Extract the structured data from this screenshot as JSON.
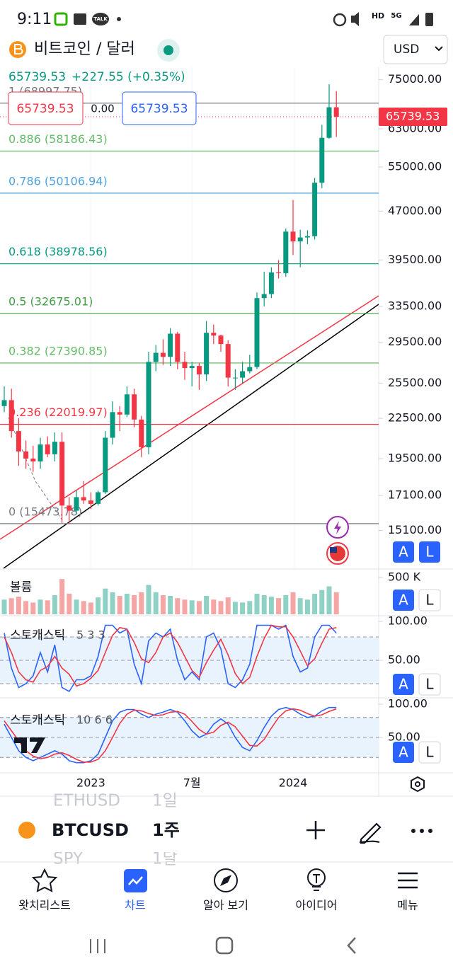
{
  "status_bar": {
    "time": "9:11",
    "talk": "TALK",
    "hd": "HD",
    "net": "5G"
  },
  "header": {
    "title": "비트코인 / 달러",
    "currency": "USD"
  },
  "quote": {
    "price": "65739.53",
    "change": "+227.55 (+0.35%)"
  },
  "order": {
    "sell": "65739.53",
    "spread": "0.00",
    "buy": "65739.53"
  },
  "chart_data": [
    {
      "type": "candlestick",
      "categories": [
        null,
        null,
        null,
        null,
        null,
        null,
        null,
        null,
        null,
        null,
        null,
        null,
        "2023",
        null,
        null,
        null,
        null,
        null,
        null,
        null,
        null,
        null,
        null,
        null,
        null,
        null,
        "7월",
        null,
        null,
        null,
        null,
        null,
        null,
        null,
        null,
        null,
        null,
        null,
        null,
        null,
        "2024",
        null,
        null,
        null,
        null,
        null,
        null
      ],
      "open": [
        23500,
        24000,
        21500,
        20000,
        19500,
        19300,
        20500,
        19800,
        20700,
        16500,
        16200,
        17000,
        16800,
        16600,
        17300,
        21000,
        23000,
        22800,
        24500,
        22400,
        20300,
        27500,
        28400,
        28000,
        30400,
        27500,
        26900,
        27100,
        26300,
        30500,
        30200,
        29300,
        26000,
        26000,
        26600,
        27000,
        34500,
        35000,
        37800,
        37700,
        43700,
        42200,
        42800,
        43000,
        52000,
        61000,
        68000
      ],
      "high": [
        25200,
        25000,
        22500,
        20800,
        20400,
        21000,
        21100,
        21400,
        21400,
        17000,
        17400,
        18000,
        17300,
        17400,
        21500,
        23900,
        23500,
        25200,
        25000,
        22700,
        28500,
        29200,
        29800,
        31000,
        30600,
        28500,
        27500,
        27400,
        31800,
        31400,
        30300,
        29700,
        26800,
        27500,
        28200,
        35200,
        37900,
        38500,
        39500,
        44200,
        48900,
        44000,
        43900,
        52900,
        63900,
        73800,
        72000
      ],
      "low": [
        23000,
        21000,
        19000,
        18800,
        18600,
        18800,
        19600,
        19300,
        15500,
        15473.78,
        16000,
        16600,
        16300,
        16500,
        17200,
        20500,
        21500,
        22600,
        21800,
        19600,
        19800,
        26600,
        27200,
        27100,
        26800,
        25800,
        25200,
        24900,
        25700,
        29300,
        28500,
        25200,
        24900,
        25500,
        26400,
        26800,
        33500,
        34500,
        37000,
        37200,
        40200,
        38500,
        41800,
        42500,
        51000,
        60800,
        61200
      ],
      "close": [
        24000,
        21500,
        20000,
        19500,
        19300,
        20500,
        19800,
        20700,
        16500,
        16200,
        17000,
        16800,
        16600,
        17300,
        21000,
        23000,
        22800,
        24500,
        22400,
        20300,
        27500,
        28400,
        28000,
        30400,
        27500,
        26900,
        27100,
        26300,
        30500,
        30200,
        29300,
        26000,
        26000,
        26600,
        27000,
        34500,
        35000,
        37800,
        37700,
        43700,
        42200,
        42800,
        43000,
        52000,
        61000,
        68000,
        65739.53
      ],
      "up_color": "#089981",
      "down_color": "#f23645",
      "log_scale": true,
      "ylim": [
        13300,
        78400
      ],
      "yticks": [
        {
          "value": 75000,
          "label": "75000.00"
        },
        {
          "value": 63000,
          "label": "63000.00"
        },
        {
          "value": 55000,
          "label": "55000.00"
        },
        {
          "value": 47000,
          "label": "47000.00"
        },
        {
          "value": 39500,
          "label": "39500.00"
        },
        {
          "value": 33500,
          "label": "33500.00"
        },
        {
          "value": 29500,
          "label": "29500.00"
        },
        {
          "value": 25500,
          "label": "25500.00"
        },
        {
          "value": 22500,
          "label": "22500.00"
        },
        {
          "value": 19500,
          "label": "19500.00"
        },
        {
          "value": 17100,
          "label": "17100.00"
        },
        {
          "value": 15100,
          "label": "15100.00"
        }
      ],
      "fib_levels": [
        {
          "label": "1 (68997.75)",
          "value": 68997.75,
          "color": "#787b86"
        },
        {
          "label": "0.886 (58186.43)",
          "value": 58186.43,
          "color": "#66bb6a"
        },
        {
          "label": "0.786 (50106.94)",
          "value": 50106.94,
          "color": "#4fa3e0"
        },
        {
          "label": "0.618 (38978.56)",
          "value": 38978.56,
          "color": "#089981"
        },
        {
          "label": "0.5 (32675.01)",
          "value": 32675.01,
          "color": "#43a047"
        },
        {
          "label": "0.382 (27390.85)",
          "value": 27390.85,
          "color": "#66bb6a"
        },
        {
          "label": "0.236 (22019.97)",
          "value": 22019.97,
          "color": "#f23645"
        },
        {
          "label": "0 (15473.78)",
          "value": 15473.78,
          "color": "#787b86"
        }
      ]
    },
    {
      "type": "bar",
      "title": "볼륨",
      "values": [
        200000,
        220000,
        240000,
        180000,
        160000,
        200000,
        190000,
        260000,
        480000,
        280000,
        200000,
        180000,
        160000,
        230000,
        350000,
        300000,
        250000,
        280000,
        260000,
        300000,
        400000,
        300000,
        260000,
        250000,
        220000,
        200000,
        190000,
        180000,
        250000,
        200000,
        180000,
        230000,
        170000,
        160000,
        180000,
        280000,
        260000,
        240000,
        220000,
        260000,
        300000,
        220000,
        200000,
        280000,
        330000,
        380000,
        300000
      ],
      "up_color": "#8fd1c5",
      "down_color": "#f5a6a4",
      "ylim": [
        0,
        520000
      ],
      "yticks": [
        {
          "value": 500000,
          "label": "500 K"
        }
      ]
    },
    {
      "type": "line",
      "title": "스토캐스틱",
      "subtitle": "5 3 3",
      "ylim": [
        0,
        100
      ],
      "yticks": [
        {
          "value": 100,
          "label": "100.00"
        },
        {
          "value": 50,
          "label": "50.00"
        }
      ],
      "levels": [
        80,
        50,
        20
      ],
      "series": [
        {
          "color": "#2962ff",
          "values": [
            85,
            40,
            15,
            20,
            30,
            60,
            35,
            70,
            15,
            10,
            25,
            25,
            30,
            55,
            95,
            95,
            85,
            90,
            45,
            20,
            75,
            85,
            80,
            90,
            50,
            25,
            35,
            25,
            80,
            85,
            65,
            20,
            15,
            25,
            45,
            95,
            95,
            95,
            90,
            95,
            55,
            35,
            40,
            80,
            95,
            95,
            85
          ]
        },
        {
          "color": "#f23645",
          "values": [
            80,
            60,
            35,
            25,
            22,
            37,
            42,
            55,
            40,
            32,
            17,
            20,
            27,
            37,
            60,
            82,
            92,
            90,
            73,
            52,
            47,
            60,
            80,
            85,
            73,
            55,
            37,
            28,
            47,
            63,
            77,
            57,
            33,
            20,
            28,
            55,
            78,
            95,
            93,
            93,
            80,
            62,
            43,
            52,
            72,
            90,
            92
          ]
        }
      ]
    },
    {
      "type": "line",
      "title": "스토캐스틱",
      "subtitle": "10 6 6",
      "ylim": [
        0,
        100
      ],
      "yticks": [
        {
          "value": 100,
          "label": "100.00"
        },
        {
          "value": 50,
          "label": "50.00"
        }
      ],
      "levels": [
        80,
        50,
        20
      ],
      "series": [
        {
          "color": "#2962ff",
          "values": [
            70,
            50,
            30,
            20,
            15,
            20,
            25,
            30,
            25,
            15,
            12,
            12,
            15,
            25,
            50,
            75,
            88,
            92,
            92,
            85,
            80,
            85,
            88,
            92,
            88,
            75,
            60,
            50,
            55,
            70,
            78,
            70,
            50,
            35,
            30,
            45,
            65,
            82,
            92,
            95,
            92,
            85,
            80,
            82,
            90,
            95,
            95
          ]
        },
        {
          "color": "#f23645",
          "values": [
            75,
            60,
            45,
            30,
            22,
            18,
            20,
            25,
            27,
            23,
            17,
            13,
            13,
            17,
            30,
            50,
            71,
            85,
            91,
            90,
            86,
            83,
            84,
            88,
            89,
            85,
            74,
            62,
            55,
            58,
            68,
            73,
            66,
            52,
            38,
            37,
            47,
            64,
            80,
            90,
            93,
            91,
            86,
            82,
            84,
            89,
            93
          ]
        }
      ]
    }
  ],
  "buttons": {
    "auto": "A",
    "log": "L"
  },
  "toolbar": {
    "symbol": "BTCUSD",
    "interval": "1주",
    "prev_symbol": "ETHUSD",
    "prev_interval": "1일",
    "next_symbol": "SPY",
    "next_interval": "1달"
  },
  "nav": [
    "왓치리스트",
    "차트",
    "알아 보기",
    "아이디어",
    "메뉴"
  ]
}
